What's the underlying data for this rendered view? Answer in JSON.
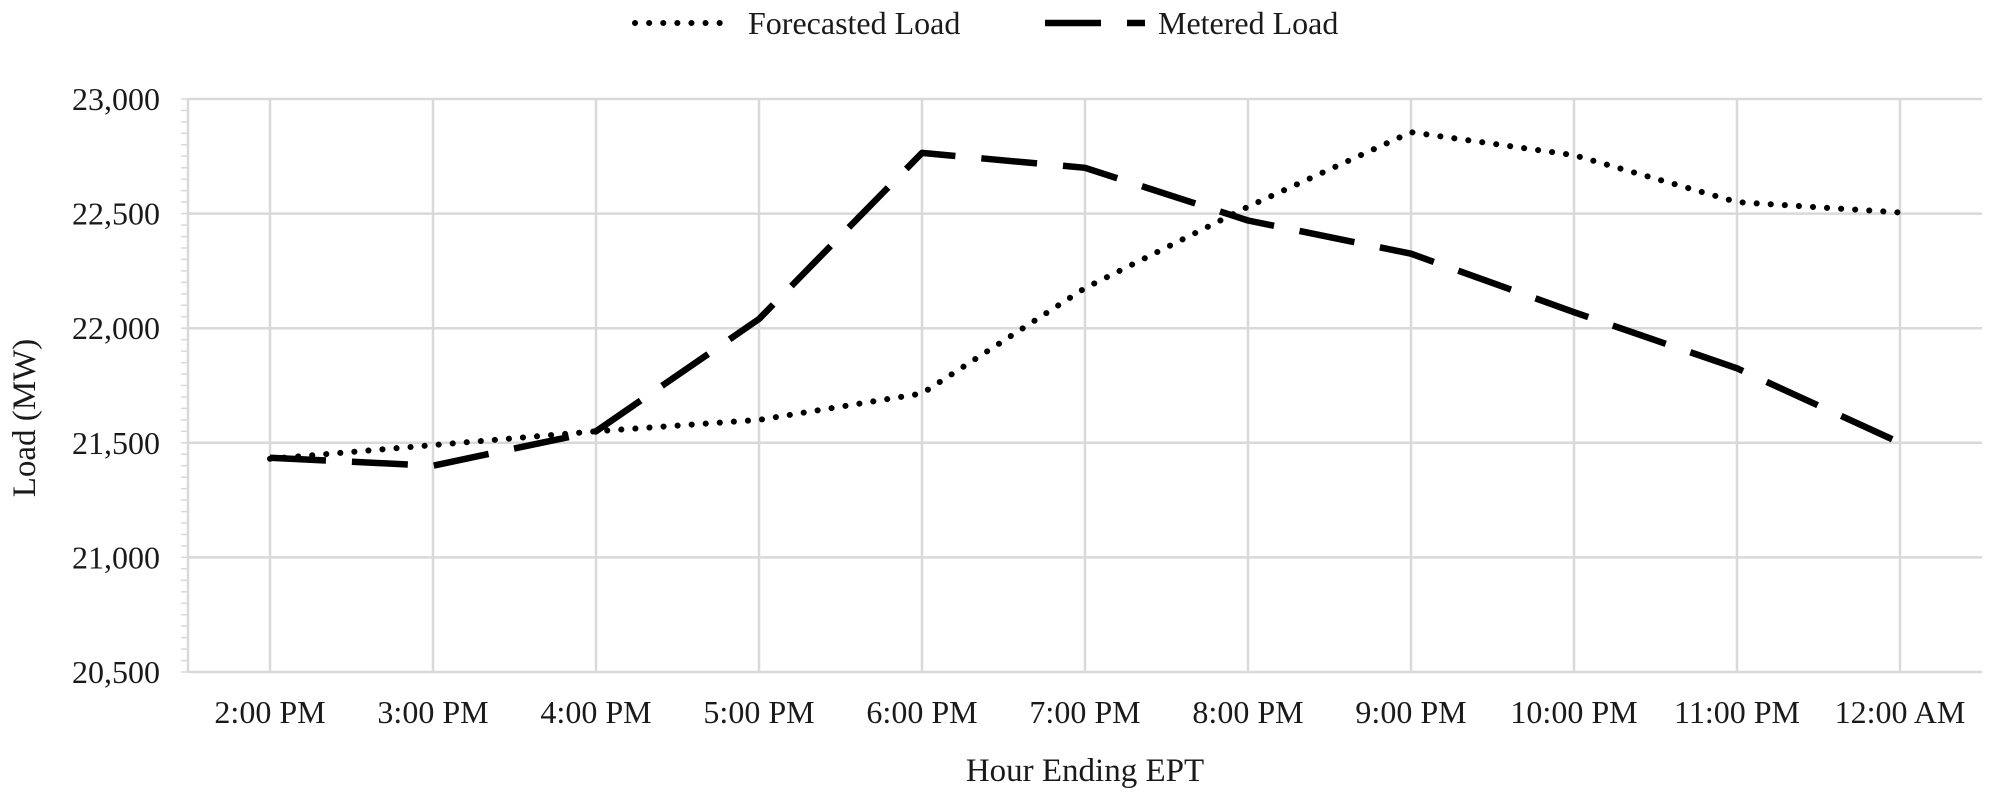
{
  "chart_data": {
    "type": "line",
    "title": "",
    "xlabel": "Hour Ending EPT",
    "ylabel": "Load (MW)",
    "categories": [
      "2:00 PM",
      "3:00 PM",
      "4:00 PM",
      "5:00 PM",
      "6:00 PM",
      "7:00 PM",
      "8:00 PM",
      "9:00 PM",
      "10:00 PM",
      "11:00 PM",
      "12:00 AM"
    ],
    "ylim": [
      20500,
      23000
    ],
    "yticks": [
      20500,
      21000,
      21500,
      22000,
      22500,
      23000
    ],
    "ytick_labels": [
      "20,500",
      "21,000",
      "21,500",
      "22,000",
      "22,500",
      "23,000"
    ],
    "grid": true,
    "legend_position": "top-center",
    "series": [
      {
        "name": "Forecasted Load",
        "style": "dotted",
        "color": "#000000",
        "values": [
          21430,
          21490,
          21550,
          21600,
          21715,
          22175,
          22530,
          22855,
          22755,
          22550,
          22505
        ]
      },
      {
        "name": "Metered Load",
        "style": "dashed",
        "color": "#000000",
        "values": [
          21435,
          21400,
          21550,
          22040,
          22765,
          22700,
          22470,
          22325,
          22070,
          21825,
          21500
        ]
      }
    ]
  }
}
